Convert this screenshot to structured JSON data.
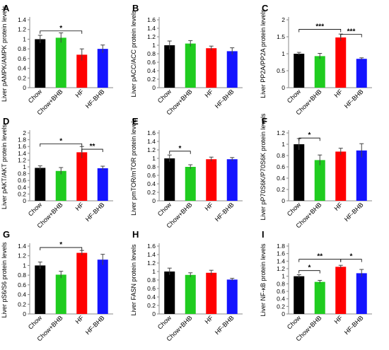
{
  "colors": {
    "bars": [
      "#000000",
      "#1fcc1f",
      "#ff0000",
      "#1414ff"
    ]
  },
  "chart_data": [
    {
      "type": "bar",
      "panel_label": "A",
      "ylabel": "Liver pAMPK/AMPK protein levels",
      "categories": [
        "Chow",
        "Chow+BHB",
        "HF",
        "HF-BHB"
      ],
      "values": [
        1.0,
        1.03,
        0.68,
        0.8
      ],
      "errors": [
        0.08,
        0.1,
        0.12,
        0.08
      ],
      "ylim": [
        0,
        1.4
      ],
      "ticks": [
        "0",
        "0.2",
        "0.4",
        "0.6",
        "0.8",
        "1",
        "1.2",
        "1.4"
      ],
      "significance": [
        {
          "from": 0,
          "to": 2,
          "label": "*",
          "y": 1.17
        }
      ]
    },
    {
      "type": "bar",
      "panel_label": "B",
      "ylabel": "Liver pACC/ACC protein levels",
      "categories": [
        "Chow",
        "Chow+BHB",
        "HF",
        "HF-BHB"
      ],
      "values": [
        1.0,
        1.04,
        0.93,
        0.86
      ],
      "errors": [
        0.1,
        0.07,
        0.05,
        0.08
      ],
      "ylim": [
        0,
        1.6
      ],
      "ticks": [
        "0",
        "0.2",
        "0.4",
        "0.6",
        "0.8",
        "1",
        "1.2",
        "1.4",
        "1.6"
      ],
      "significance": []
    },
    {
      "type": "bar",
      "panel_label": "C",
      "ylabel": "Liver PP2A/PP2A protein levels",
      "categories": [
        "Chow",
        "Chow+BHB",
        "HF",
        "HF-BHB"
      ],
      "values": [
        1.0,
        0.93,
        1.48,
        0.85
      ],
      "errors": [
        0.04,
        0.08,
        0.1,
        0.03
      ],
      "ylim": [
        0,
        2
      ],
      "ticks": [
        "0",
        "0.5",
        "1",
        "1.5",
        "2"
      ],
      "significance": [
        {
          "from": 0,
          "to": 2,
          "label": "***",
          "y": 1.72
        },
        {
          "from": 2,
          "to": 3,
          "label": "***",
          "y": 1.57
        }
      ]
    },
    {
      "type": "bar",
      "panel_label": "D",
      "ylabel": "Liver pAKT/AKT protein levels",
      "categories": [
        "Chow",
        "Chow+BHB",
        "HF",
        "HF-BHB"
      ],
      "values": [
        0.97,
        0.88,
        1.43,
        0.96
      ],
      "errors": [
        0.06,
        0.1,
        0.17,
        0.06
      ],
      "ylim": [
        0,
        2
      ],
      "ticks": [
        "0",
        "0.2",
        "0.4",
        "0.6",
        "0.8",
        "1",
        "1.2",
        "1.4",
        "1.6",
        "1.8",
        "2"
      ],
      "significance": [
        {
          "from": 0,
          "to": 2,
          "label": "*",
          "y": 1.68
        },
        {
          "from": 2,
          "to": 3,
          "label": "**",
          "y": 1.52
        }
      ]
    },
    {
      "type": "bar",
      "panel_label": "E",
      "ylabel": "Liver pmTOR/mTOR protein levels",
      "categories": [
        "Chow",
        "Chow+BHB",
        "HF",
        "HF-BHB"
      ],
      "values": [
        1.0,
        0.8,
        0.98,
        0.98
      ],
      "errors": [
        0.08,
        0.05,
        0.05,
        0.04
      ],
      "ylim": [
        0,
        1.6
      ],
      "ticks": [
        "0",
        "0.2",
        "0.4",
        "0.6",
        "0.8",
        "1",
        "1.2",
        "1.4",
        "1.6"
      ],
      "significance": [
        {
          "from": 0,
          "to": 1,
          "label": "*",
          "y": 1.17
        }
      ]
    },
    {
      "type": "bar",
      "panel_label": "F",
      "ylabel": "Liver pP70S6K/P70S6K protein levels",
      "categories": [
        "Chow",
        "Chow+BHB",
        "HF",
        "HF-BHB"
      ],
      "values": [
        1.0,
        0.72,
        0.87,
        0.89
      ],
      "errors": [
        0.1,
        0.09,
        0.06,
        0.12
      ],
      "ylim": [
        0,
        1.2
      ],
      "ticks": [
        "0",
        "0.2",
        "0.4",
        "0.6",
        "0.8",
        "1",
        "1.2"
      ],
      "significance": [
        {
          "from": 0,
          "to": 1,
          "label": "*",
          "y": 1.11
        }
      ]
    },
    {
      "type": "bar",
      "panel_label": "G",
      "ylabel": "Liver pS6/S6 protein levels",
      "categories": [
        "Chow",
        "Chow+BHB",
        "HF",
        "HF-BHB"
      ],
      "values": [
        1.0,
        0.81,
        1.26,
        1.12
      ],
      "errors": [
        0.07,
        0.07,
        0.05,
        0.11
      ],
      "ylim": [
        0,
        1.4
      ],
      "ticks": [
        "0",
        "0.2",
        "0.4",
        "0.6",
        "0.8",
        "1",
        "1.2",
        "1.4"
      ],
      "significance": [
        {
          "from": 0,
          "to": 2,
          "label": "*",
          "y": 1.37
        }
      ]
    },
    {
      "type": "bar",
      "panel_label": "H",
      "ylabel": "Liver FASN protein levels",
      "categories": [
        "Chow",
        "Chow+BHB",
        "HF",
        "HF-BHB"
      ],
      "values": [
        1.0,
        0.92,
        0.97,
        0.81
      ],
      "errors": [
        0.08,
        0.05,
        0.06,
        0.03
      ],
      "ylim": [
        0,
        1.6
      ],
      "ticks": [
        "0",
        "0.2",
        "0.4",
        "0.6",
        "0.8",
        "1",
        "1.2",
        "1.4",
        "1.6"
      ],
      "significance": []
    },
    {
      "type": "bar",
      "panel_label": "I",
      "ylabel": "Liver NF-κB protein levels",
      "categories": [
        "Chow",
        "Chow+BHB",
        "HF",
        "HF-BHB"
      ],
      "values": [
        1.0,
        0.85,
        1.25,
        1.08
      ],
      "errors": [
        0.04,
        0.04,
        0.04,
        0.1
      ],
      "ylim": [
        0,
        1.8
      ],
      "ticks": [
        "0",
        "0.2",
        "0.4",
        "0.6",
        "0.8",
        "1",
        "1.2",
        "1.4",
        "1.6",
        "1.8"
      ],
      "significance": [
        {
          "from": 0,
          "to": 1,
          "label": "*",
          "y": 1.15
        },
        {
          "from": 0,
          "to": 2,
          "label": "**",
          "y": 1.45
        },
        {
          "from": 2,
          "to": 3,
          "label": "*",
          "y": 1.45
        }
      ]
    }
  ]
}
